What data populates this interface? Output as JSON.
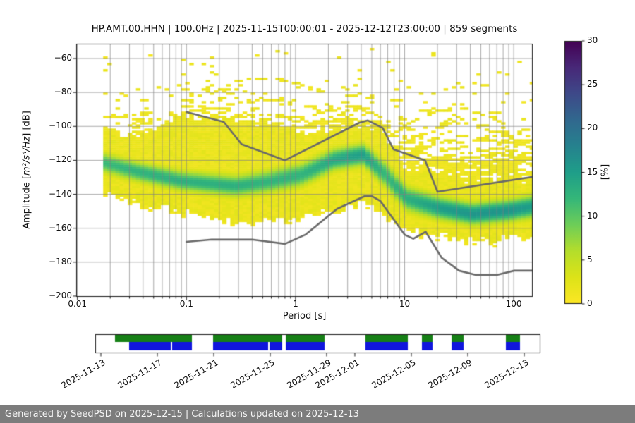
{
  "header": {
    "title": "HP.AMT.00.HHN | 100.0Hz | 2025-11-15T00:00:01 - 2025-12-12T23:00:00 | 859 segments",
    "station": "HP.AMT.00.HHN",
    "sampling_rate": "100.0Hz",
    "time_range": "2025-11-15T00:00:01 - 2025-12-12T23:00:00",
    "segments": "859 segments"
  },
  "footer": {
    "text": "Generated by SeedPSD on 2025-12-15 | Calculations updated on 2025-12-13",
    "background": "#7c7c7c",
    "text_color": "#f7f7f7"
  },
  "chart_data": [
    {
      "type": "heatmap",
      "title": "PPSD probability density",
      "xlabel": "Period [s]",
      "ylabel_prefix": "Amplitude [",
      "ylabel_unit": "m²/s⁴/Hz",
      "ylabel_suffix": "] [dB]",
      "xscale": "log",
      "xlim": [
        0.0098,
        149
      ],
      "ylim": [
        -200,
        -51
      ],
      "xticks": [
        0.01,
        0.1,
        1,
        10,
        100
      ],
      "xtick_labels": [
        "0.01",
        "0.1",
        "1",
        "10",
        "100"
      ],
      "yticks": [
        -200,
        -180,
        -160,
        -140,
        -120,
        -100,
        -80,
        -60
      ],
      "grid": true,
      "grid_color": "#828282",
      "colorbar": {
        "label": "[%]",
        "vmin": 0,
        "vmax": 30,
        "ticks": [
          0,
          5,
          10,
          15,
          20,
          25,
          30
        ],
        "cmap": "viridis_r",
        "cmap_stops": [
          [
            0.0,
            "#440154"
          ],
          [
            0.1,
            "#482878"
          ],
          [
            0.2,
            "#3e4989"
          ],
          [
            0.3,
            "#31688e"
          ],
          [
            0.4,
            "#26828e"
          ],
          [
            0.5,
            "#1f9e89"
          ],
          [
            0.6,
            "#35b779"
          ],
          [
            0.7,
            "#6ece58"
          ],
          [
            0.8,
            "#b5de2b"
          ],
          [
            0.9,
            "#dde318"
          ],
          [
            1.0,
            "#fde725"
          ]
        ]
      },
      "noise_models": {
        "color": "#696969",
        "nhnm": [
          [
            0.1,
            -91.5
          ],
          [
            0.22,
            -97.4
          ],
          [
            0.32,
            -110.5
          ],
          [
            0.8,
            -120.0
          ],
          [
            3.8,
            -98.0
          ],
          [
            4.6,
            -96.5
          ],
          [
            6.3,
            -101.0
          ],
          [
            7.9,
            -113.5
          ],
          [
            15.4,
            -120.0
          ],
          [
            20.0,
            -138.5
          ],
          [
            354.8,
            -126.0
          ]
        ],
        "nlnm": [
          [
            0.1,
            -168.0
          ],
          [
            0.17,
            -166.7
          ],
          [
            0.4,
            -166.7
          ],
          [
            0.8,
            -169.2
          ],
          [
            1.24,
            -163.7
          ],
          [
            2.4,
            -148.6
          ],
          [
            4.3,
            -141.1
          ],
          [
            5.0,
            -141.1
          ],
          [
            6.0,
            -144.0
          ],
          [
            10.0,
            -163.8
          ],
          [
            12.0,
            -166.2
          ],
          [
            15.6,
            -162.1
          ],
          [
            21.9,
            -177.5
          ],
          [
            31.6,
            -185.0
          ],
          [
            45.0,
            -187.5
          ],
          [
            70.0,
            -187.5
          ],
          [
            101.0,
            -185.0
          ],
          [
            154.0,
            -185.0
          ],
          [
            328.0,
            -187.5
          ]
        ]
      },
      "density": {
        "note": "PPSD distribution per log10(period): [log10_period, mode_dB, sigma_dB, upper_envelope_dB, lower_envelope_dB, peak_percent]",
        "period_bin_octaves": 0.125,
        "db_bin": 1.25,
        "controls": [
          [
            -1.745,
            -121.5,
            4.2,
            -101,
            -139,
            12
          ],
          [
            -1.45,
            -126.5,
            4.2,
            -107,
            -145,
            12.5
          ],
          [
            -1.05,
            -132.0,
            4.2,
            -94,
            -150,
            13
          ],
          [
            -0.55,
            -135.0,
            4.5,
            -96,
            -156,
            13
          ],
          [
            -0.25,
            -132.5,
            4.8,
            -99,
            -156,
            12.5
          ],
          [
            0.05,
            -128.5,
            5.0,
            -103,
            -154,
            12.5
          ],
          [
            0.35,
            -119.5,
            4.6,
            -102,
            -149,
            14
          ],
          [
            0.62,
            -116.5,
            4.6,
            -98,
            -145,
            15
          ],
          [
            0.82,
            -128.0,
            5.5,
            -106,
            -152,
            12
          ],
          [
            1.02,
            -142.5,
            5.2,
            -124,
            -160,
            13
          ],
          [
            1.32,
            -148.0,
            4.8,
            -128,
            -164,
            15
          ],
          [
            1.62,
            -151.5,
            4.6,
            -132,
            -166.5,
            16
          ],
          [
            1.95,
            -149.5,
            4.6,
            -133,
            -166,
            16
          ],
          [
            2.18,
            -147.0,
            4.8,
            -131,
            -164,
            15
          ]
        ],
        "high_noise_arcs": [
          [
            [
              -1.1,
              -104
            ],
            [
              -0.8,
              -82
            ],
            [
              -0.55,
              -73
            ],
            [
              -0.2,
              -71.5
            ],
            [
              0.15,
              -77
            ],
            [
              0.5,
              -87
            ],
            [
              0.95,
              -99
            ],
            [
              1.3,
              -110
            ]
          ],
          [
            [
              -0.95,
              -101
            ],
            [
              -0.55,
              -86
            ],
            [
              -0.15,
              -84
            ],
            [
              0.25,
              -90
            ],
            [
              0.65,
              -98
            ],
            [
              1.05,
              -108
            ]
          ],
          [
            [
              -1.15,
              -109
            ],
            [
              -0.65,
              -95
            ],
            [
              -0.25,
              -92.5
            ],
            [
              0.15,
              -96
            ],
            [
              0.55,
              -104
            ],
            [
              0.95,
              -113
            ]
          ],
          [
            [
              -1.25,
              -113
            ],
            [
              -0.75,
              -103
            ],
            [
              -0.35,
              -100.5
            ],
            [
              0.05,
              -104
            ],
            [
              0.45,
              -110
            ]
          ],
          [
            [
              -1.35,
              -116
            ],
            [
              -0.85,
              -108
            ],
            [
              -0.45,
              -106
            ],
            [
              -0.05,
              -109
            ],
            [
              0.35,
              -115
            ]
          ],
          [
            [
              0.75,
              -111
            ],
            [
              1.05,
              -97
            ],
            [
              1.3,
              -90.5
            ],
            [
              1.55,
              -89.5
            ],
            [
              1.8,
              -95
            ],
            [
              2.05,
              -104
            ],
            [
              2.18,
              -109
            ]
          ],
          [
            [
              0.85,
              -115
            ],
            [
              1.15,
              -104
            ],
            [
              1.45,
              -97.5
            ],
            [
              1.7,
              -99
            ],
            [
              1.95,
              -106
            ],
            [
              2.18,
              -113
            ]
          ],
          [
            [
              0.95,
              -120
            ],
            [
              1.25,
              -111
            ],
            [
              1.55,
              -105.5
            ],
            [
              1.85,
              -109
            ],
            [
              2.1,
              -116
            ]
          ],
          [
            [
              1.05,
              -126
            ],
            [
              1.35,
              -118
            ],
            [
              1.65,
              -113.5
            ],
            [
              1.95,
              -117
            ],
            [
              2.18,
              -123
            ]
          ],
          [
            [
              1.15,
              -132
            ],
            [
              1.45,
              -125
            ],
            [
              1.75,
              -121
            ],
            [
              2.05,
              -125
            ],
            [
              2.18,
              -129
            ]
          ]
        ]
      }
    },
    {
      "type": "coverage-timeline",
      "title": "data coverage",
      "green_color": "#168016",
      "blue_color": "#1016dd",
      "green_segments": [
        [
          0.0444,
          0.2175
        ],
        [
          0.2651,
          0.4206
        ],
        [
          0.4286,
          0.5159
        ],
        [
          0.6079,
          0.7032
        ],
        [
          0.7349,
          0.7587
        ],
        [
          0.8016,
          0.8286
        ],
        [
          0.9238,
          0.9556
        ]
      ],
      "blue_segments": [
        [
          0.0762,
          0.1698
        ],
        [
          0.173,
          0.2175
        ],
        [
          0.2651,
          0.3889
        ],
        [
          0.3921,
          0.4206
        ],
        [
          0.4286,
          0.5159
        ],
        [
          0.6079,
          0.7032
        ],
        [
          0.7349,
          0.7587
        ],
        [
          0.8016,
          0.8286
        ],
        [
          0.9238,
          0.9556
        ]
      ],
      "tick_positions": [
        0.0127,
        0.1397,
        0.2667,
        0.3937,
        0.5206,
        0.5841,
        0.7111,
        0.8381,
        0.9651
      ],
      "tick_labels": [
        "2025-11-13",
        "2025-11-17",
        "2025-11-21",
        "2025-11-25",
        "2025-11-29",
        "2025-12-01",
        "2025-12-05",
        "2025-12-09",
        "2025-12-13"
      ]
    }
  ]
}
